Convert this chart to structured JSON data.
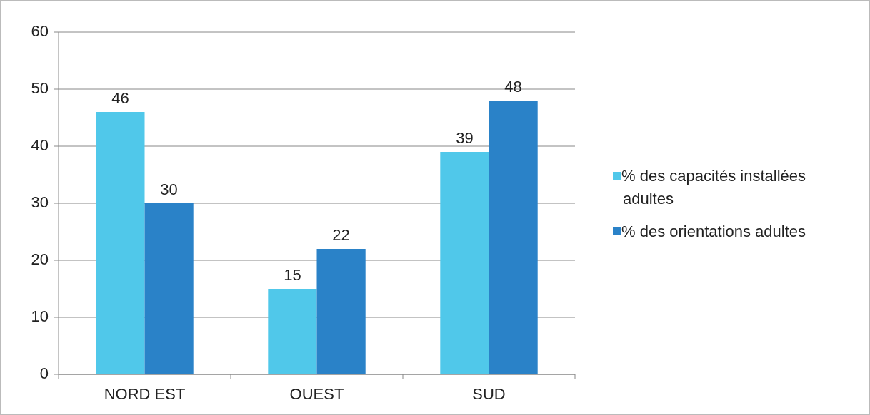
{
  "chart_data": {
    "type": "bar",
    "categories": [
      "NORD EST",
      "OUEST",
      "SUD"
    ],
    "series": [
      {
        "name": "% des capacités installées adultes",
        "color": "#50c8ea",
        "values": [
          46,
          15,
          39
        ]
      },
      {
        "name": "% des orientations adultes",
        "color": "#2a82c8",
        "values": [
          30,
          22,
          48
        ]
      }
    ],
    "ylim": [
      0,
      60
    ],
    "yticks": [
      0,
      10,
      20,
      30,
      40,
      50,
      60
    ],
    "grid": "y",
    "legend": "right",
    "data_labels": true
  }
}
